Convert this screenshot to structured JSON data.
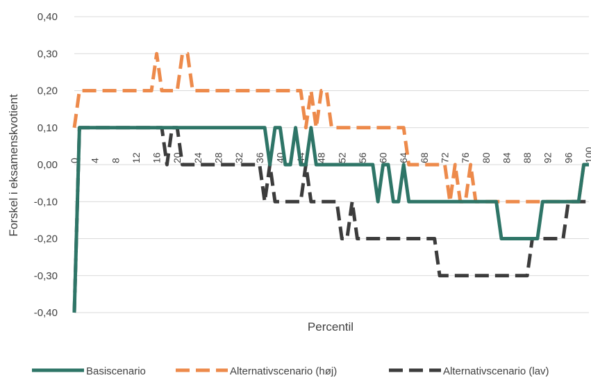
{
  "chart_data": {
    "type": "line",
    "title": "",
    "xlabel": "Percentil",
    "ylabel": "Forskel i eksamenskvotient",
    "ylim": [
      -0.4,
      0.4
    ],
    "xlim": [
      0,
      100
    ],
    "grid": "horizontal",
    "legend_position": "bottom",
    "y_ticks": [
      "0,40",
      "0,30",
      "0,20",
      "0,10",
      "0,00",
      "-0,10",
      "-0,20",
      "-0,30",
      "-0,40"
    ],
    "y_tick_values": [
      0.4,
      0.3,
      0.2,
      0.1,
      0.0,
      -0.1,
      -0.2,
      -0.3,
      -0.4
    ],
    "x_ticks": [
      "0",
      "4",
      "8",
      "12",
      "16",
      "20",
      "24",
      "28",
      "32",
      "36",
      "40",
      "44",
      "48",
      "52",
      "56",
      "60",
      "64",
      "68",
      "72",
      "76",
      "80",
      "84",
      "88",
      "92",
      "96",
      "100"
    ],
    "series": [
      {
        "name": "Basiscenario",
        "color": "#2e7567",
        "style": "solid",
        "x": [
          0,
          1,
          2,
          36,
          37,
          38,
          39,
          40,
          41,
          42,
          43,
          44,
          45,
          46,
          47,
          48,
          49,
          50,
          51,
          52,
          53,
          54,
          55,
          56,
          57,
          58,
          59,
          60,
          61,
          62,
          63,
          64,
          65,
          66,
          67,
          68,
          69,
          70,
          71,
          72,
          73,
          74,
          75,
          76,
          77,
          78,
          79,
          80,
          81,
          82,
          83,
          84,
          85,
          86,
          87,
          88,
          89,
          90,
          91,
          92,
          93,
          94,
          95,
          96,
          97,
          98,
          99,
          100
        ],
        "y": [
          -0.4,
          0.1,
          0.1,
          0.1,
          0.1,
          0.0,
          0.1,
          0.1,
          0.0,
          0.0,
          0.1,
          0.0,
          0.0,
          0.1,
          0.0,
          0.0,
          0.0,
          0.0,
          0.0,
          0.0,
          0.0,
          0.0,
          0.0,
          0.0,
          0.0,
          0.0,
          -0.1,
          0.0,
          0.0,
          -0.1,
          -0.1,
          0.0,
          -0.1,
          -0.1,
          -0.1,
          -0.1,
          -0.1,
          -0.1,
          -0.1,
          -0.1,
          -0.1,
          -0.1,
          -0.1,
          -0.1,
          -0.1,
          -0.1,
          -0.1,
          -0.1,
          -0.1,
          -0.1,
          -0.2,
          -0.2,
          -0.2,
          -0.2,
          -0.2,
          -0.2,
          -0.2,
          -0.2,
          -0.1,
          -0.1,
          -0.1,
          -0.1,
          -0.1,
          -0.1,
          -0.1,
          -0.1,
          0.0,
          0.0
        ]
      },
      {
        "name": "Alternativscenario (høj)",
        "color": "#ed8a4b",
        "style": "dashed",
        "x": [
          0,
          1,
          2,
          14,
          15,
          16,
          17,
          18,
          19,
          20,
          21,
          22,
          23,
          24,
          25,
          44,
          45,
          46,
          47,
          48,
          49,
          50,
          51,
          52,
          62,
          63,
          64,
          65,
          66,
          67,
          68,
          69,
          70,
          71,
          72,
          73,
          74,
          75,
          76,
          77,
          78,
          79,
          80,
          81,
          97,
          98,
          99,
          100
        ],
        "y": [
          0.1,
          0.2,
          0.2,
          0.2,
          0.2,
          0.3,
          0.2,
          0.2,
          0.2,
          0.2,
          0.3,
          0.3,
          0.2,
          0.2,
          0.2,
          0.2,
          0.1,
          0.2,
          0.1,
          0.2,
          0.2,
          0.1,
          0.1,
          0.1,
          0.1,
          0.1,
          0.1,
          0.0,
          0.0,
          0.0,
          0.0,
          0.0,
          0.0,
          0.0,
          0.0,
          -0.1,
          0.0,
          -0.1,
          -0.1,
          0.0,
          -0.1,
          -0.1,
          -0.1,
          -0.1,
          -0.1,
          -0.1,
          0.0,
          0.0
        ]
      },
      {
        "name": "Alternativscenario (lav)",
        "color": "#3c3c3c",
        "style": "dashed",
        "x": [
          0,
          1,
          2,
          16,
          17,
          18,
          19,
          20,
          21,
          22,
          23,
          24,
          25,
          36,
          37,
          38,
          39,
          40,
          41,
          42,
          43,
          44,
          45,
          46,
          47,
          48,
          49,
          50,
          51,
          52,
          53,
          54,
          55,
          56,
          57,
          58,
          59,
          60,
          61,
          62,
          63,
          64,
          65,
          66,
          67,
          68,
          69,
          70,
          71,
          72,
          73,
          74,
          75,
          76,
          87,
          88,
          89,
          90,
          91,
          92,
          93,
          94,
          95,
          96,
          97,
          98,
          99,
          100
        ],
        "y": [
          -0.4,
          0.1,
          0.1,
          0.1,
          0.1,
          0.0,
          0.1,
          0.1,
          0.0,
          0.0,
          0.0,
          0.0,
          0.0,
          0.0,
          -0.1,
          0.0,
          -0.1,
          -0.1,
          -0.1,
          -0.1,
          -0.1,
          -0.1,
          0.0,
          -0.1,
          -0.1,
          -0.1,
          -0.1,
          -0.1,
          -0.1,
          -0.2,
          -0.2,
          -0.1,
          -0.2,
          -0.2,
          -0.2,
          -0.2,
          -0.2,
          -0.2,
          -0.2,
          -0.2,
          -0.2,
          -0.2,
          -0.2,
          -0.2,
          -0.2,
          -0.2,
          -0.2,
          -0.2,
          -0.3,
          -0.3,
          -0.3,
          -0.3,
          -0.3,
          -0.3,
          -0.3,
          -0.3,
          -0.2,
          -0.2,
          -0.2,
          -0.2,
          -0.2,
          -0.2,
          -0.2,
          -0.1,
          -0.1,
          -0.1,
          -0.1,
          -0.1
        ]
      }
    ]
  }
}
